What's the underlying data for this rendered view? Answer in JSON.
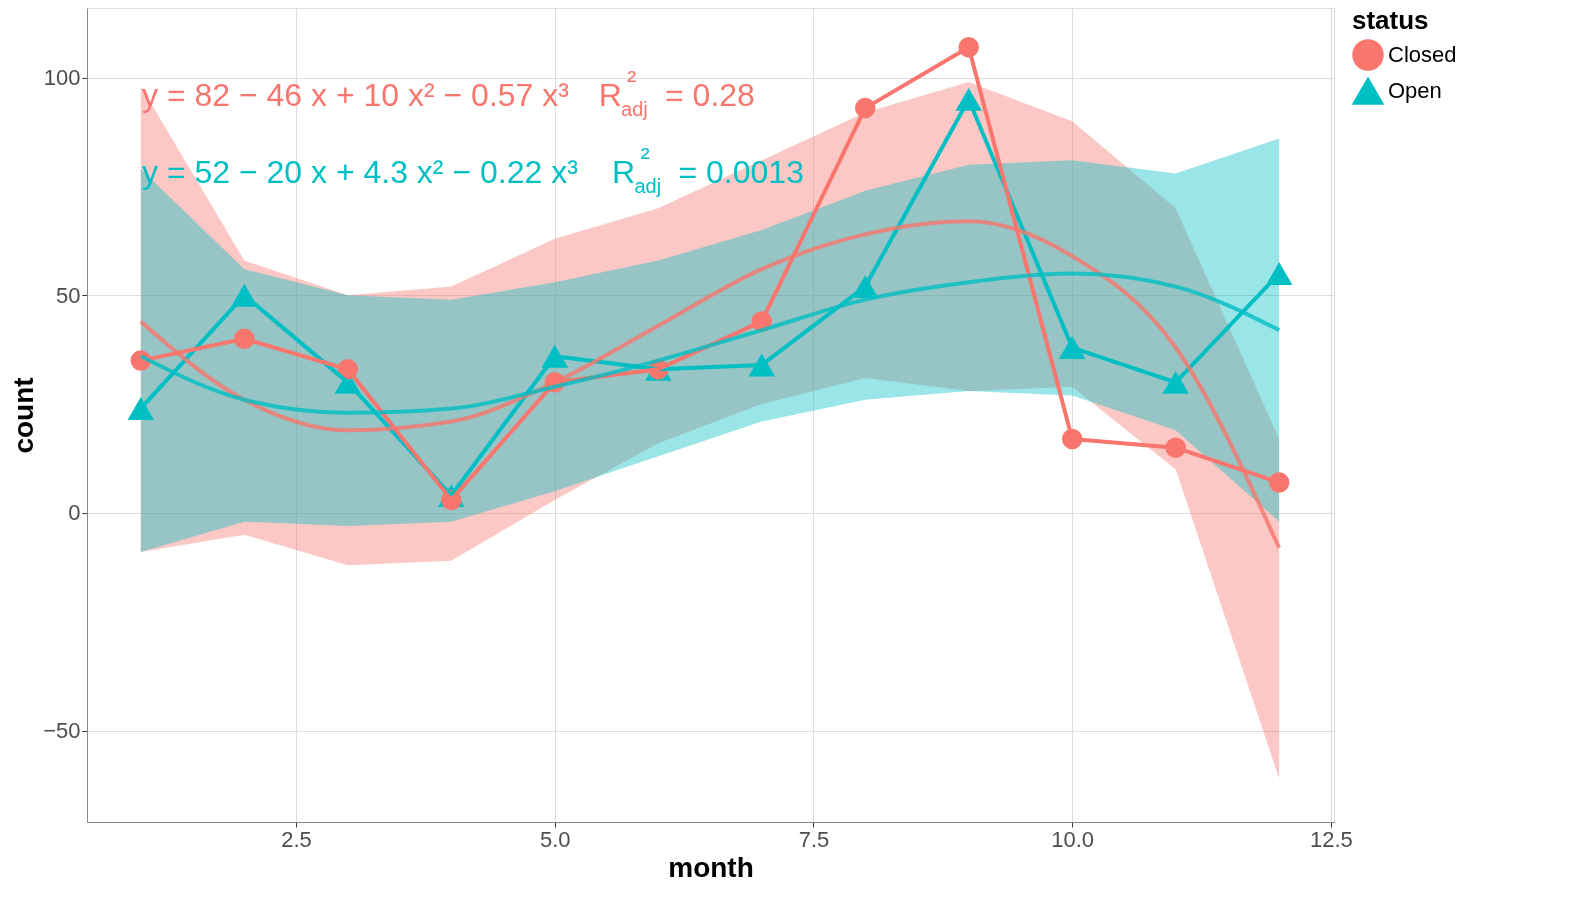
{
  "chart_data": {
    "type": "line",
    "xlabel": "month",
    "ylabel": "count",
    "legend_title": "status",
    "legend": "right",
    "grid": true,
    "line_style": "solid",
    "xlim": [
      0.48,
      12.53
    ],
    "xticks": [
      {
        "value": 2.5,
        "label": "2.5"
      },
      {
        "value": 5,
        "label": "5.0"
      },
      {
        "value": 7.5,
        "label": "7.5"
      },
      {
        "value": 10,
        "label": "10.0"
      },
      {
        "value": 12.5,
        "label": "12.5"
      }
    ],
    "ylim": [
      -71,
      116
    ],
    "yticks": [
      -50,
      0,
      50,
      100
    ],
    "x": [
      1,
      2,
      3,
      4,
      5,
      6,
      7,
      8,
      9,
      10,
      11,
      12
    ],
    "series": [
      {
        "name": "Closed",
        "color": "#f8766d",
        "marker": "circle",
        "values": [
          35,
          40,
          33,
          3,
          30,
          33,
          44,
          93,
          107,
          17,
          15,
          7
        ]
      },
      {
        "name": "Open",
        "color": "#00bfc4",
        "marker": "triangle",
        "values": [
          24,
          50,
          30,
          4,
          36,
          33,
          34,
          52,
          95,
          38,
          30,
          55
        ]
      },
      {
        "type": "line",
        "color": "#f8766d",
        "marker": "none",
        "x": [
          1,
          2,
          3,
          4,
          5,
          6,
          7,
          8,
          9,
          10,
          11,
          12
        ],
        "values": [
          44,
          26,
          19,
          21,
          30,
          43,
          56,
          64,
          67,
          59,
          38,
          -8
        ],
        "lower": [
          -9,
          -5,
          -12,
          -11,
          3,
          16,
          25,
          31,
          28,
          29,
          10,
          -61
        ],
        "upper": [
          98,
          58,
          50,
          52,
          63,
          70,
          81,
          92,
          99,
          90,
          70,
          17
        ]
      },
      {
        "type": "line",
        "color": "#00bfc4",
        "marker": "none",
        "x": [
          1,
          2,
          3,
          4,
          5,
          6,
          7,
          8,
          9,
          10,
          11,
          12
        ],
        "values": [
          36,
          26,
          23,
          24,
          29,
          35,
          42,
          49,
          53,
          55,
          52,
          42
        ],
        "lower": [
          -9,
          -2,
          -3,
          -2,
          5,
          13,
          21,
          26,
          28,
          27,
          19,
          -2
        ],
        "upper": [
          79,
          56,
          50,
          49,
          53,
          58,
          65,
          74,
          80,
          81,
          78,
          86
        ]
      }
    ],
    "annotations": [
      "y = 82 − 46 x + 10 x² − 0.57 x³    R$_{adj}$² = 0.28",
      "y = 52 − 20 x + 4.3 x² − 0.22 x³    R$_{adj}$² = 0.0013"
    ]
  }
}
